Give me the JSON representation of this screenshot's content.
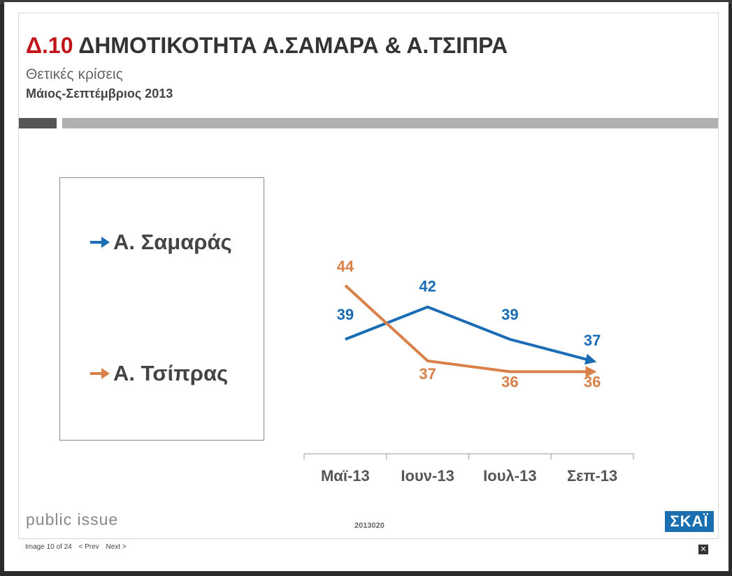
{
  "slide": {
    "title_number": "Δ.10",
    "title_text": "ΔΗΜΟΤΙΚΟΤΗΤΑ Α.ΣΑΜΑΡΑ & Α.ΤΣΙΠΡΑ",
    "subtitle": "Θετικές κρίσεις",
    "period": "Μάιος-Σεπτέμβριος 2013",
    "brand_left": "public issue",
    "footer_code": "2013020",
    "brand_right": "ΣΚΑΪ"
  },
  "colors": {
    "title_accent": "#c0161b",
    "samaras": "#1a6cb5",
    "tsipras": "#d98149"
  },
  "chart_data": {
    "type": "line",
    "categories": [
      "Μαϊ-13",
      "Ιουν-13",
      "Ιουλ-13",
      "Σεπ-13"
    ],
    "series": [
      {
        "name": "Α. Σαμαράς",
        "values": [
          39,
          42,
          39,
          37
        ]
      },
      {
        "name": "Α. Τσίπρας",
        "values": [
          44,
          37,
          36,
          36
        ]
      }
    ],
    "legend_position": "left",
    "grid": false,
    "ylim": [
      30,
      48
    ]
  },
  "lightbox": {
    "counter": "Image 10 of 24",
    "prev_label": "< Prev",
    "next_label": "Next >",
    "close_label": "✕"
  }
}
